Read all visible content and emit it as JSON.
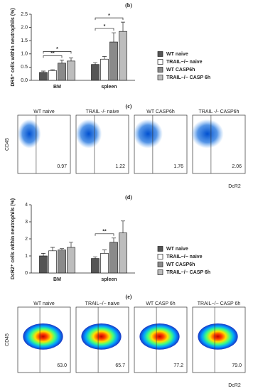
{
  "chart_data": [
    {
      "type": "bar",
      "panel": "(b)",
      "ylabel": "DR5⁺ cells within neutrophils (%)",
      "categories": [
        "BM",
        "spleen"
      ],
      "series": [
        {
          "name": "WT naive",
          "color": "#555555",
          "values": [
            0.3,
            0.6
          ],
          "errors": [
            0.05,
            0.07
          ]
        },
        {
          "name": "TRAIL−/− naive",
          "color": "#ffffff",
          "values": [
            0.37,
            0.8
          ],
          "errors": [
            0.03,
            0.1
          ]
        },
        {
          "name": "WT CASP6h",
          "color": "#8a8a8a",
          "values": [
            0.65,
            1.45
          ],
          "errors": [
            0.12,
            0.35
          ]
        },
        {
          "name": "TRAIL−/− CASP 6h",
          "color": "#bdbdbd",
          "values": [
            0.73,
            1.85
          ],
          "errors": [
            0.12,
            0.35
          ]
        }
      ],
      "ylim": [
        0,
        2.5
      ],
      "yticks": [
        {
          "value": 0,
          "label": "0.0"
        },
        0.5,
        {
          "value": 1,
          "label": "1.0"
        },
        1.5,
        {
          "value": 2,
          "label": "2.0"
        },
        2.5
      ],
      "comparisons": [
        {
          "label": "**",
          "category": 0,
          "series": [
            0,
            2
          ]
        },
        {
          "label": "*",
          "category": 0,
          "series": [
            0,
            3
          ]
        },
        {
          "label": "*",
          "category": 1,
          "series": [
            0,
            2
          ]
        },
        {
          "label": "*",
          "category": 1,
          "series": [
            0,
            3
          ]
        }
      ]
    },
    {
      "type": "bar",
      "panel": "(d)",
      "ylabel": "DcR2⁺ cells within neutrophils (%)",
      "categories": [
        "BM",
        "spleen"
      ],
      "series": [
        {
          "name": "WT naive",
          "color": "#555555",
          "values": [
            1.0,
            0.85
          ],
          "errors": [
            0.15,
            0.1
          ]
        },
        {
          "name": "TRAIL−/− naive",
          "color": "#ffffff",
          "values": [
            1.3,
            1.15
          ],
          "errors": [
            0.2,
            0.2
          ]
        },
        {
          "name": "WT CASP6h",
          "color": "#8a8a8a",
          "values": [
            1.35,
            1.8
          ],
          "errors": [
            0.08,
            0.25
          ]
        },
        {
          "name": "TRAIL−/− CASP 6h",
          "color": "#bdbdbd",
          "values": [
            1.5,
            2.35
          ],
          "errors": [
            0.3,
            0.7
          ]
        }
      ],
      "ylim": [
        0,
        4
      ],
      "yticks": [
        0,
        1,
        2,
        3,
        4
      ],
      "comparisons": [
        {
          "label": "**",
          "category": 1,
          "series": [
            0,
            2
          ]
        }
      ]
    }
  ],
  "flow": [
    {
      "panel": "(c)",
      "ylabel": "CD45",
      "xlabel": "DcR2",
      "style": "dots",
      "plots": [
        {
          "title": "WT naive",
          "value": "0.97"
        },
        {
          "title": "TRAIL -/- naive",
          "value": "1.22"
        },
        {
          "title": "WT CASP6h",
          "value": "1.76"
        },
        {
          "title": "TRAIL -/- CASP6h",
          "value": "2.06"
        }
      ]
    },
    {
      "panel": "(e)",
      "ylabel": "CD45",
      "xlabel": "DcR2",
      "style": "density",
      "plots": [
        {
          "title": "WT naive",
          "value": "63.0"
        },
        {
          "title": "TRAIL−/− naive",
          "value": "65.7"
        },
        {
          "title": "WT CASP 6h",
          "value": "77.2"
        },
        {
          "title": "TRAIL−/− CASP 6h",
          "value": "79.0"
        }
      ]
    }
  ]
}
